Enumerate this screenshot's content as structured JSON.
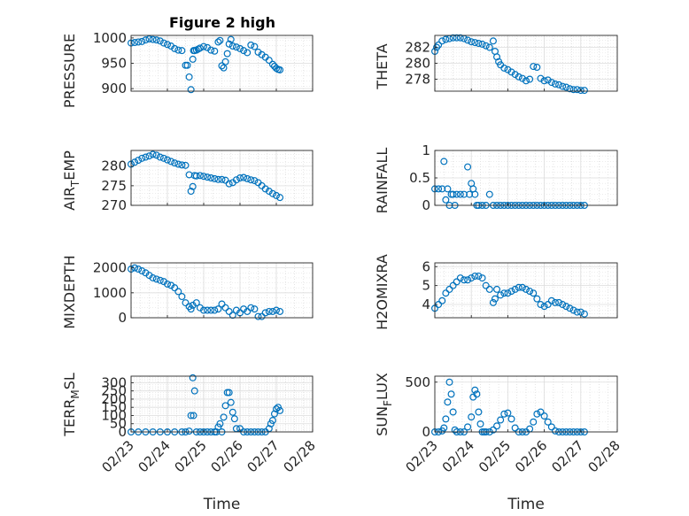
{
  "title": "Figure 2 high",
  "xlabel": "Time",
  "x_ticks": [
    "02/23",
    "02/24",
    "02/25",
    "02/26",
    "02/27",
    "02/28"
  ],
  "x_domain": [
    "02/23",
    "02/28"
  ],
  "marker_color": "#0072BD",
  "chart_data": [
    {
      "type": "scatter",
      "ylabel": "PRESSURE",
      "title": "Figure 2 high",
      "ylim": [
        895,
        1005
      ],
      "yticks": [
        900,
        950,
        1000
      ],
      "grid": true,
      "x": [
        0.0,
        0.1,
        0.2,
        0.3,
        0.4,
        0.5,
        0.6,
        0.7,
        0.8,
        0.9,
        1.0,
        1.1,
        1.2,
        1.3,
        1.4,
        1.5,
        1.55,
        1.6,
        1.65,
        1.7,
        1.72,
        1.75,
        1.8,
        1.85,
        1.9,
        2.0,
        2.1,
        2.2,
        2.3,
        2.4,
        2.45,
        2.5,
        2.55,
        2.6,
        2.65,
        2.7,
        2.75,
        2.8,
        2.9,
        3.0,
        3.1,
        3.2,
        3.3,
        3.4,
        3.5,
        3.6,
        3.7,
        3.8,
        3.9,
        3.95,
        4.0,
        4.05,
        4.1
      ],
      "y": [
        990,
        991,
        992,
        993,
        996,
        998,
        997,
        996,
        994,
        990,
        987,
        984,
        979,
        976,
        975,
        946,
        946,
        923,
        898,
        958,
        975,
        975,
        976,
        978,
        980,
        983,
        981,
        976,
        974,
        992,
        995,
        945,
        941,
        953,
        969,
        988,
        997,
        984,
        982,
        979,
        975,
        971,
        986,
        983,
        972,
        967,
        962,
        956,
        948,
        944,
        940,
        938,
        937
      ]
    },
    {
      "type": "scatter",
      "ylabel": "THETA",
      "ylim": [
        276.5,
        283.5
      ],
      "yticks": [
        278,
        280,
        282
      ],
      "grid": true,
      "x": [
        0.0,
        0.05,
        0.1,
        0.2,
        0.3,
        0.4,
        0.5,
        0.6,
        0.7,
        0.8,
        0.9,
        1.0,
        1.1,
        1.2,
        1.3,
        1.4,
        1.5,
        1.6,
        1.65,
        1.7,
        1.75,
        1.8,
        1.9,
        2.0,
        2.1,
        2.2,
        2.3,
        2.4,
        2.5,
        2.6,
        2.7,
        2.8,
        2.9,
        3.0,
        3.1,
        3.2,
        3.3,
        3.4,
        3.5,
        3.6,
        3.7,
        3.8,
        3.9,
        4.0,
        4.1
      ],
      "y": [
        281.5,
        282.0,
        282.3,
        282.8,
        283.0,
        283.1,
        283.2,
        283.2,
        283.2,
        283.1,
        282.9,
        282.7,
        282.6,
        282.5,
        282.4,
        282.2,
        282.0,
        282.8,
        281.5,
        280.8,
        280.2,
        279.8,
        279.4,
        279.2,
        278.9,
        278.6,
        278.3,
        278.1,
        277.8,
        278.0,
        279.6,
        279.5,
        278.1,
        277.8,
        277.9,
        277.6,
        277.4,
        277.3,
        277.1,
        277.0,
        276.8,
        276.7,
        276.7,
        276.6,
        276.6
      ]
    },
    {
      "type": "scatter",
      "ylabel": "AIR_TEMP",
      "ylim": [
        270,
        284
      ],
      "yticks": [
        270,
        275,
        280
      ],
      "grid": true,
      "x": [
        0.0,
        0.1,
        0.2,
        0.3,
        0.4,
        0.5,
        0.6,
        0.7,
        0.8,
        0.9,
        1.0,
        1.1,
        1.2,
        1.3,
        1.4,
        1.5,
        1.6,
        1.65,
        1.7,
        1.75,
        1.8,
        1.9,
        2.0,
        2.1,
        2.2,
        2.3,
        2.4,
        2.5,
        2.6,
        2.7,
        2.8,
        2.9,
        3.0,
        3.1,
        3.2,
        3.3,
        3.4,
        3.5,
        3.6,
        3.7,
        3.8,
        3.9,
        4.0,
        4.1
      ],
      "y": [
        280.5,
        281.0,
        281.5,
        282.0,
        282.3,
        282.6,
        283.0,
        282.8,
        282.3,
        282.0,
        281.6,
        281.2,
        280.8,
        280.5,
        280.3,
        280.2,
        277.8,
        273.6,
        274.8,
        277.6,
        277.5,
        277.6,
        277.4,
        277.2,
        277.0,
        276.8,
        276.6,
        276.6,
        276.4,
        275.5,
        275.8,
        276.5,
        277.0,
        277.1,
        276.8,
        276.5,
        276.3,
        275.8,
        275.0,
        274.2,
        273.6,
        273.0,
        272.5,
        272.0
      ]
    },
    {
      "type": "scatter",
      "ylabel": "RAINFALL",
      "ylim": [
        0,
        1
      ],
      "yticks": [
        0,
        0.5,
        1
      ],
      "grid": true,
      "x": [
        0.0,
        0.1,
        0.2,
        0.25,
        0.3,
        0.35,
        0.4,
        0.45,
        0.5,
        0.55,
        0.6,
        0.7,
        0.8,
        0.9,
        0.95,
        1.0,
        1.05,
        1.1,
        1.15,
        1.2,
        1.3,
        1.4,
        1.5,
        1.6,
        1.7,
        1.8,
        1.9,
        2.0,
        2.1,
        2.2,
        2.3,
        2.4,
        2.5,
        2.6,
        2.7,
        2.8,
        2.9,
        3.0,
        3.1,
        3.2,
        3.3,
        3.4,
        3.5,
        3.6,
        3.7,
        3.8,
        3.9,
        4.0,
        4.1
      ],
      "y": [
        0.3,
        0.3,
        0.3,
        0.8,
        0.1,
        0.3,
        0.0,
        0.2,
        0.2,
        0.0,
        0.2,
        0.2,
        0.2,
        0.7,
        0.2,
        0.4,
        0.3,
        0.2,
        0.0,
        0.0,
        0.0,
        0.0,
        0.2,
        0.0,
        0.0,
        0.0,
        0.0,
        0.0,
        0.0,
        0.0,
        0.0,
        0.0,
        0.0,
        0.0,
        0.0,
        0.0,
        0.0,
        0.0,
        0.0,
        0.0,
        0.0,
        0.0,
        0.0,
        0.0,
        0.0,
        0.0,
        0.0,
        0.0,
        0.0
      ]
    },
    {
      "type": "scatter",
      "ylabel": "MIXDEPTH",
      "ylim": [
        0,
        2200
      ],
      "yticks": [
        0,
        1000,
        2000
      ],
      "grid": true,
      "x": [
        0.0,
        0.1,
        0.2,
        0.3,
        0.4,
        0.5,
        0.6,
        0.7,
        0.8,
        0.9,
        1.0,
        1.1,
        1.2,
        1.3,
        1.4,
        1.5,
        1.6,
        1.65,
        1.7,
        1.8,
        1.9,
        2.0,
        2.1,
        2.2,
        2.3,
        2.4,
        2.5,
        2.6,
        2.7,
        2.8,
        2.9,
        3.0,
        3.1,
        3.2,
        3.3,
        3.4,
        3.5,
        3.6,
        3.7,
        3.8,
        3.9,
        4.0,
        4.1
      ],
      "y": [
        1950,
        2000,
        1950,
        1880,
        1800,
        1700,
        1600,
        1550,
        1500,
        1450,
        1350,
        1300,
        1200,
        1050,
        850,
        600,
        450,
        350,
        500,
        600,
        400,
        300,
        300,
        300,
        300,
        350,
        550,
        400,
        250,
        100,
        300,
        200,
        350,
        250,
        400,
        350,
        50,
        50,
        200,
        250,
        250,
        300,
        250
      ]
    },
    {
      "type": "scatter",
      "ylabel": "H2OMIXRA",
      "ylim": [
        3.3,
        6.2
      ],
      "yticks": [
        4,
        5,
        6
      ],
      "grid": true,
      "x": [
        0.0,
        0.1,
        0.2,
        0.3,
        0.4,
        0.5,
        0.6,
        0.7,
        0.8,
        0.9,
        1.0,
        1.1,
        1.2,
        1.3,
        1.4,
        1.5,
        1.6,
        1.65,
        1.7,
        1.8,
        1.9,
        2.0,
        2.1,
        2.2,
        2.3,
        2.4,
        2.5,
        2.6,
        2.7,
        2.8,
        2.9,
        3.0,
        3.1,
        3.2,
        3.3,
        3.4,
        3.5,
        3.6,
        3.7,
        3.8,
        3.9,
        4.0,
        4.1
      ],
      "y": [
        3.8,
        4.0,
        4.2,
        4.6,
        4.8,
        5.0,
        5.2,
        5.4,
        5.3,
        5.3,
        5.4,
        5.5,
        5.5,
        5.4,
        5.0,
        4.8,
        4.1,
        4.3,
        4.8,
        4.5,
        4.6,
        4.6,
        4.7,
        4.8,
        4.9,
        4.9,
        4.8,
        4.7,
        4.6,
        4.3,
        4.0,
        3.9,
        4.0,
        4.2,
        4.1,
        4.1,
        4.0,
        3.9,
        3.8,
        3.7,
        3.6,
        3.6,
        3.5
      ]
    },
    {
      "type": "scatter",
      "ylabel": "TERR_MSL",
      "ylim": [
        0,
        340
      ],
      "yticks": [
        0,
        50,
        100,
        150,
        200,
        250,
        300
      ],
      "grid": true,
      "x": [
        0.0,
        0.2,
        0.4,
        0.6,
        0.8,
        1.0,
        1.2,
        1.4,
        1.5,
        1.6,
        1.65,
        1.7,
        1.72,
        1.75,
        1.8,
        1.9,
        2.0,
        2.1,
        2.2,
        2.3,
        2.35,
        2.4,
        2.45,
        2.5,
        2.55,
        2.6,
        2.65,
        2.7,
        2.75,
        2.8,
        2.85,
        2.9,
        3.0,
        3.1,
        3.2,
        3.3,
        3.4,
        3.5,
        3.6,
        3.7,
        3.8,
        3.85,
        3.9,
        3.95,
        4.0,
        4.05,
        4.1
      ],
      "y": [
        0,
        0,
        0,
        0,
        0,
        0,
        0,
        0,
        0,
        5,
        100,
        330,
        100,
        250,
        0,
        0,
        0,
        0,
        0,
        0,
        0,
        30,
        50,
        0,
        90,
        160,
        240,
        240,
        180,
        120,
        80,
        20,
        20,
        0,
        0,
        0,
        0,
        0,
        0,
        0,
        20,
        50,
        70,
        110,
        140,
        150,
        130
      ]
    },
    {
      "type": "scatter",
      "ylabel": "SUN_FLUX",
      "ylim": [
        0,
        560
      ],
      "yticks": [
        0,
        500
      ],
      "grid": true,
      "x": [
        0.0,
        0.1,
        0.2,
        0.25,
        0.3,
        0.35,
        0.4,
        0.45,
        0.5,
        0.55,
        0.6,
        0.7,
        0.8,
        0.9,
        1.0,
        1.05,
        1.1,
        1.15,
        1.2,
        1.25,
        1.3,
        1.35,
        1.4,
        1.5,
        1.6,
        1.7,
        1.8,
        1.9,
        2.0,
        2.1,
        2.2,
        2.3,
        2.4,
        2.5,
        2.6,
        2.7,
        2.8,
        2.9,
        3.0,
        3.1,
        3.2,
        3.3,
        3.4,
        3.5,
        3.6,
        3.7,
        3.8,
        3.9,
        4.0,
        4.1
      ],
      "y": [
        0,
        0,
        10,
        40,
        130,
        300,
        500,
        380,
        200,
        20,
        0,
        0,
        0,
        50,
        150,
        350,
        420,
        380,
        200,
        80,
        0,
        0,
        0,
        0,
        20,
        60,
        120,
        180,
        190,
        130,
        40,
        0,
        0,
        0,
        30,
        100,
        180,
        200,
        160,
        100,
        50,
        10,
        0,
        0,
        0,
        0,
        0,
        0,
        0,
        0
      ]
    }
  ]
}
